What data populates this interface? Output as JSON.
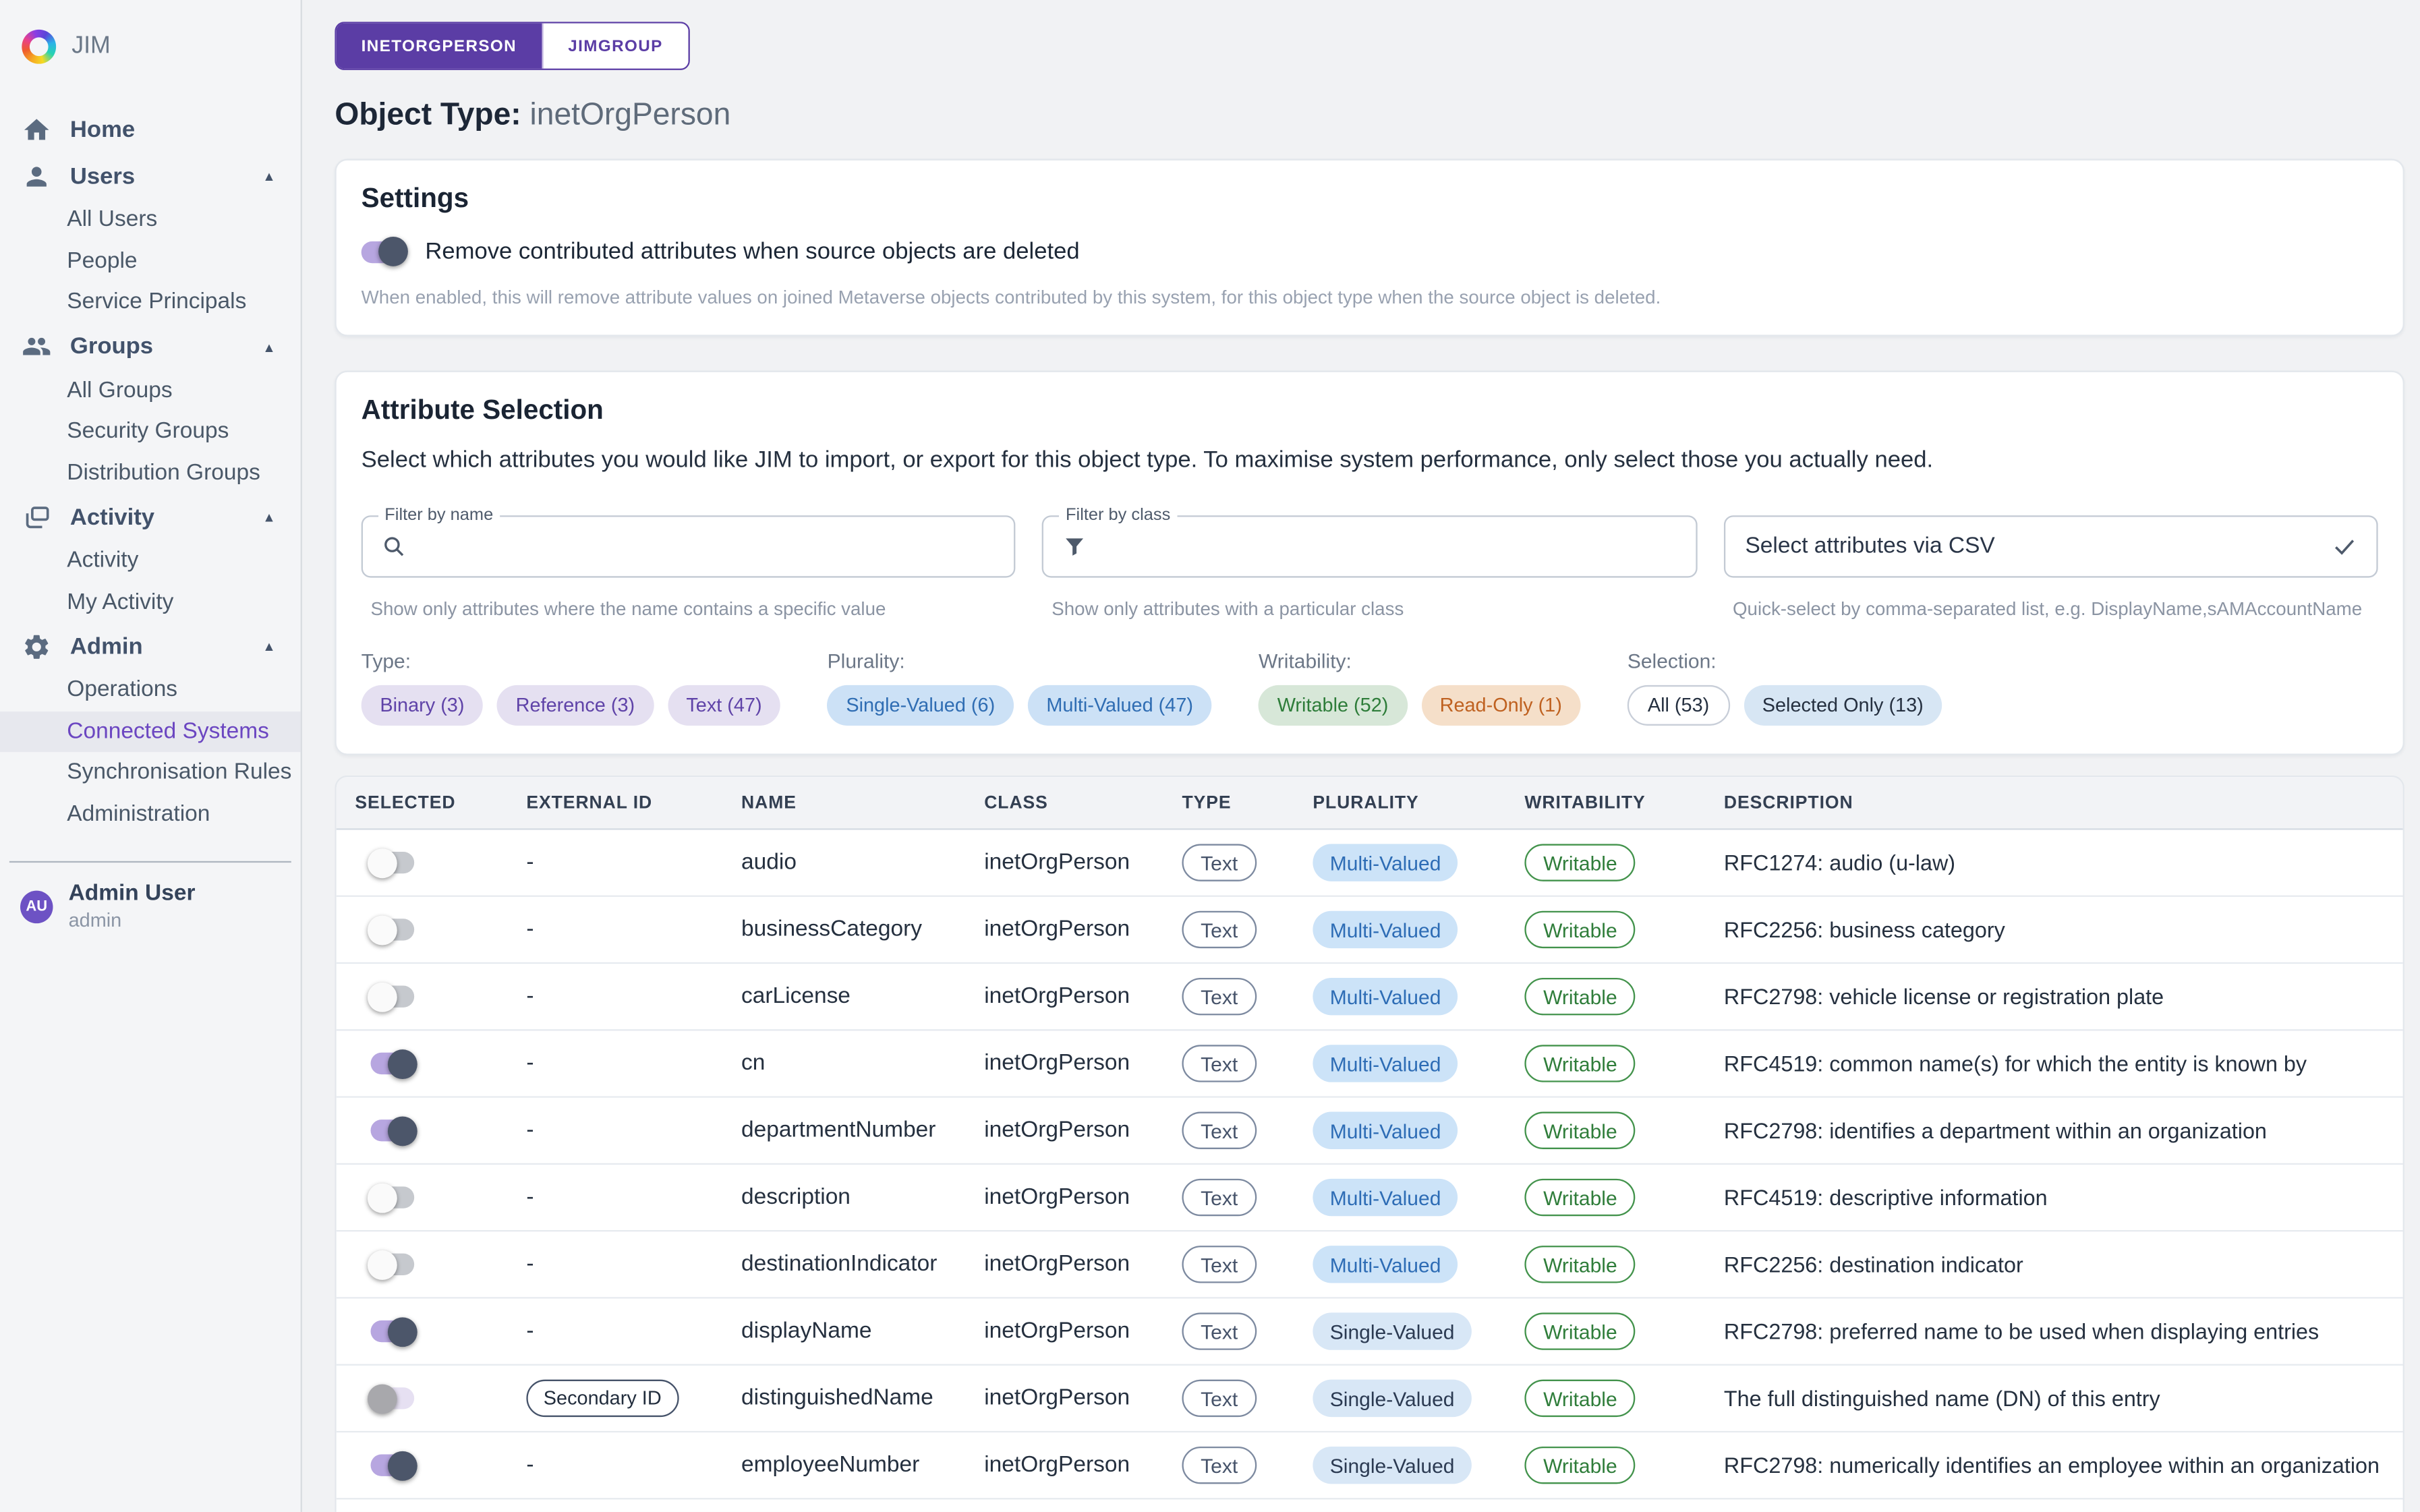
{
  "colors": {
    "accent_purple": "#5b3da5",
    "sidebar_active": "#6b46c1",
    "toggle_on_track": "#b7a6e0",
    "toggle_on_knob": "#4c566a",
    "chip_purple_bg": "#e5e0f1",
    "chip_blue_bg": "#cce1f6",
    "chip_green_text": "#2e7d3a",
    "chip_orange_text": "#bf6120",
    "writable_green": "#2f7d3a",
    "avatar_bg": "#6d52c4"
  },
  "sidebar": {
    "logo_text": "JIM",
    "items": [
      {
        "type": "top",
        "label": "Home",
        "icon": "home-icon",
        "caret": false
      },
      {
        "type": "top",
        "label": "Users",
        "icon": "user-icon",
        "caret": true
      },
      {
        "type": "sub",
        "label": "All Users"
      },
      {
        "type": "sub",
        "label": "People"
      },
      {
        "type": "sub",
        "label": "Service Principals"
      },
      {
        "type": "top",
        "label": "Groups",
        "icon": "people-group-icon",
        "caret": true
      },
      {
        "type": "sub",
        "label": "All Groups"
      },
      {
        "type": "sub",
        "label": "Security Groups"
      },
      {
        "type": "sub",
        "label": "Distribution Groups"
      },
      {
        "type": "top",
        "label": "Activity",
        "icon": "stacked-windows-icon",
        "caret": true
      },
      {
        "type": "sub",
        "label": "Activity"
      },
      {
        "type": "sub",
        "label": "My Activity"
      },
      {
        "type": "top",
        "label": "Admin",
        "icon": "gear-icon",
        "caret": true
      },
      {
        "type": "sub",
        "label": "Operations"
      },
      {
        "type": "sub",
        "label": "Connected Systems",
        "active": true
      },
      {
        "type": "sub",
        "label": "Synchronisation Rules"
      },
      {
        "type": "sub",
        "label": "Administration"
      }
    ],
    "user": {
      "initials": "AU",
      "name": "Admin User",
      "role": "admin"
    }
  },
  "tabs": [
    {
      "label": "INETORGPERSON",
      "active": true
    },
    {
      "label": "JIMGROUP",
      "active": false
    }
  ],
  "page_title": {
    "prefix": "Object Type:",
    "value": "inetOrgPerson"
  },
  "settings": {
    "heading": "Settings",
    "toggle_state": "on",
    "toggle_label": "Remove contributed attributes when source objects are deleted",
    "help": "When enabled, this will remove attribute values on joined Metaverse objects contributed by this system, for this object type when the source object is deleted."
  },
  "attribute_selection": {
    "heading": "Attribute Selection",
    "description": "Select which attributes you would like JIM to import, or export for this object type. To maximise system performance, only select those you actually need.",
    "filters": {
      "name": {
        "label": "Filter by name",
        "value": "",
        "helper": "Show only attributes where the name contains a specific value",
        "icon": "search-icon"
      },
      "class": {
        "label": "Filter by class",
        "value": "",
        "helper": "Show only attributes with a particular class",
        "icon": "filter-funnel-icon"
      },
      "csv": {
        "placeholder": "Select attributes via CSV",
        "value": "",
        "helper": "Quick-select by comma-separated list, e.g. DisplayName,sAMAccountName",
        "icon": "checkmark-icon"
      }
    },
    "filter_groups": [
      {
        "label": "Type:",
        "chips": [
          {
            "label": "Binary (3)",
            "style": "purple"
          },
          {
            "label": "Reference (3)",
            "style": "purple"
          },
          {
            "label": "Text (47)",
            "style": "purple"
          }
        ]
      },
      {
        "label": "Plurality:",
        "chips": [
          {
            "label": "Single-Valued (6)",
            "style": "blue"
          },
          {
            "label": "Multi-Valued (47)",
            "style": "blue"
          }
        ]
      },
      {
        "label": "Writability:",
        "chips": [
          {
            "label": "Writable (52)",
            "style": "green"
          },
          {
            "label": "Read-Only (1)",
            "style": "orange"
          }
        ]
      },
      {
        "label": "Selection:",
        "chips": [
          {
            "label": "All (53)",
            "style": "outline"
          },
          {
            "label": "Selected Only (13)",
            "style": "bluemuted"
          }
        ]
      }
    ]
  },
  "table": {
    "headers": [
      "SELECTED",
      "EXTERNAL ID",
      "NAME",
      "CLASS",
      "TYPE",
      "PLURALITY",
      "WRITABILITY",
      "DESCRIPTION"
    ],
    "rows": [
      {
        "selected": "off",
        "external_id": "-",
        "name": "audio",
        "class": "inetOrgPerson",
        "type": "Text",
        "plurality": "Multi-Valued",
        "writability": "Writable",
        "description": "RFC1274: audio (u-law)"
      },
      {
        "selected": "off",
        "external_id": "-",
        "name": "businessCategory",
        "class": "inetOrgPerson",
        "type": "Text",
        "plurality": "Multi-Valued",
        "writability": "Writable",
        "description": "RFC2256: business category"
      },
      {
        "selected": "off",
        "external_id": "-",
        "name": "carLicense",
        "class": "inetOrgPerson",
        "type": "Text",
        "plurality": "Multi-Valued",
        "writability": "Writable",
        "description": "RFC2798: vehicle license or registration plate"
      },
      {
        "selected": "on",
        "external_id": "-",
        "name": "cn",
        "class": "inetOrgPerson",
        "type": "Text",
        "plurality": "Multi-Valued",
        "writability": "Writable",
        "description": "RFC4519: common name(s) for which the entity is known by"
      },
      {
        "selected": "on",
        "external_id": "-",
        "name": "departmentNumber",
        "class": "inetOrgPerson",
        "type": "Text",
        "plurality": "Multi-Valued",
        "writability": "Writable",
        "description": "RFC2798: identifies a department within an organization"
      },
      {
        "selected": "off",
        "external_id": "-",
        "name": "description",
        "class": "inetOrgPerson",
        "type": "Text",
        "plurality": "Multi-Valued",
        "writability": "Writable",
        "description": "RFC4519: descriptive information"
      },
      {
        "selected": "off",
        "external_id": "-",
        "name": "destinationIndicator",
        "class": "inetOrgPerson",
        "type": "Text",
        "plurality": "Multi-Valued",
        "writability": "Writable",
        "description": "RFC2256: destination indicator"
      },
      {
        "selected": "on",
        "external_id": "-",
        "name": "displayName",
        "class": "inetOrgPerson",
        "type": "Text",
        "plurality": "Single-Valued",
        "writability": "Writable",
        "description": "RFC2798: preferred name to be used when displaying entries"
      },
      {
        "selected": "disabled",
        "external_id": "Secondary ID",
        "external_badge": true,
        "name": "distinguishedName",
        "class": "inetOrgPerson",
        "type": "Text",
        "plurality": "Single-Valued",
        "writability": "Writable",
        "description": "The full distinguished name (DN) of this entry"
      },
      {
        "selected": "on",
        "external_id": "-",
        "name": "employeeNumber",
        "class": "inetOrgPerson",
        "type": "Text",
        "plurality": "Single-Valued",
        "writability": "Writable",
        "description": "RFC2798: numerically identifies an employee within an organization"
      }
    ]
  }
}
